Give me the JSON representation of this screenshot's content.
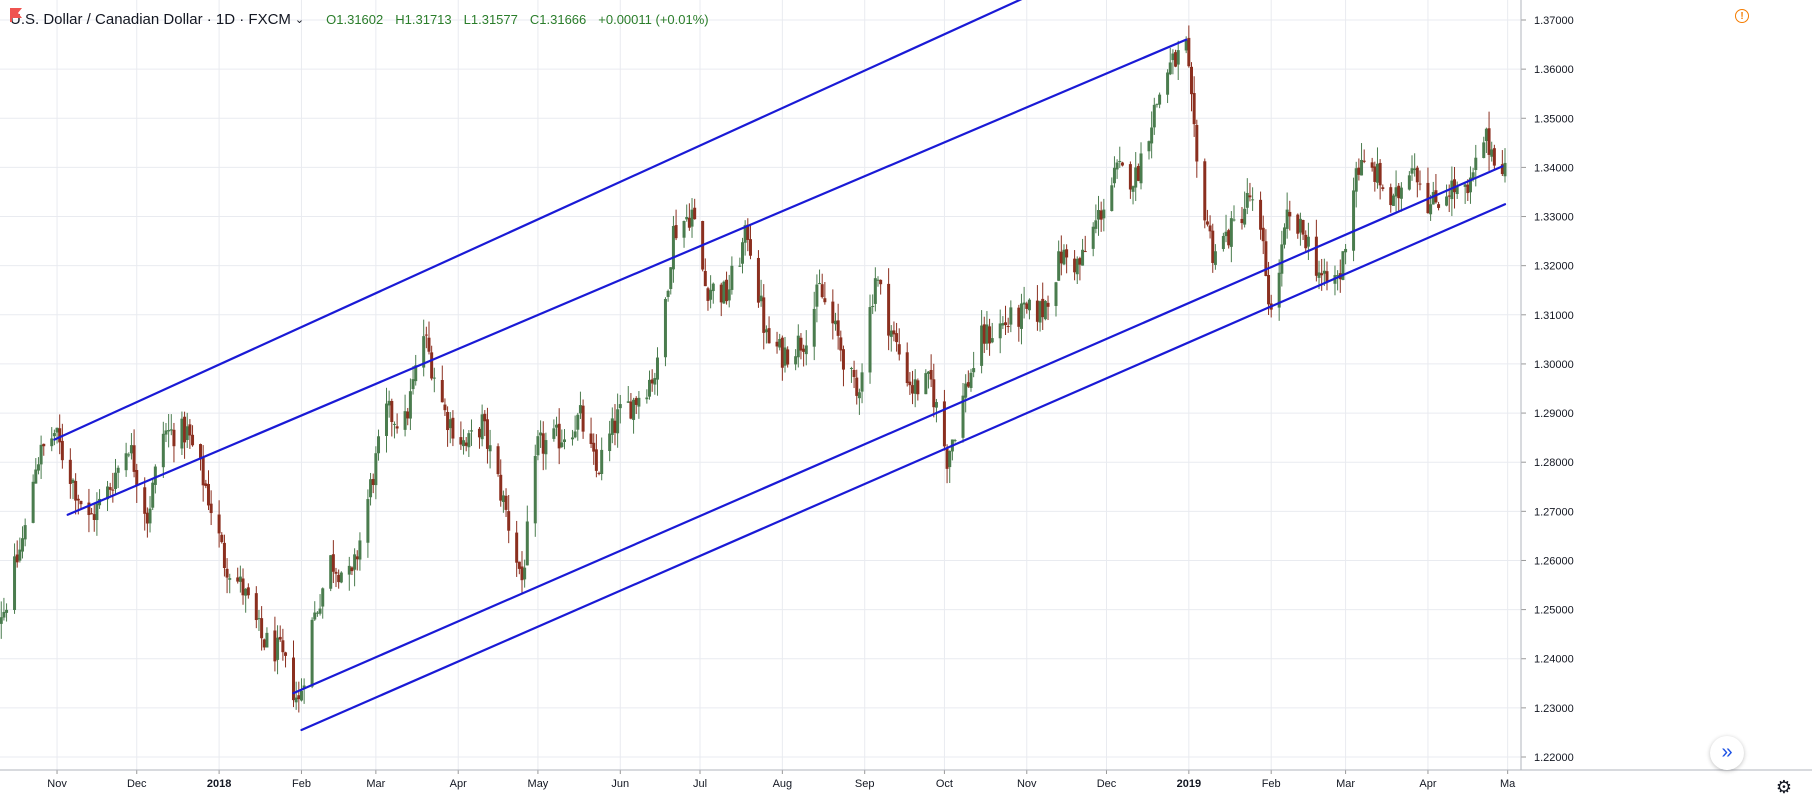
{
  "header": {
    "symbol_title": "U.S. Dollar / Canadian Dollar · 1D · FXCM",
    "chevron": "⌄",
    "open": "O1.31602",
    "high": "H1.31713",
    "low": "L1.31577",
    "close": "C1.31666",
    "change": "+0.00011 (+0.01%)",
    "flag_color": "#ef5350",
    "ohlc_color": "#2a7d2a"
  },
  "icons": {
    "alert": "!",
    "scroll_right": "»",
    "settings": "⚙"
  },
  "colors": {
    "up": "#4a7c4e",
    "down": "#8b2f1f",
    "trendline": "#1a1ad6",
    "grid": "#e9ebf0",
    "axis_text": "#131722"
  },
  "chart_data": {
    "type": "candlestick",
    "title": "U.S. Dollar / Canadian Dollar · 1D · FXCM",
    "ylim": [
      1.215,
      1.3725
    ],
    "y_ticks": [
      "1.22000",
      "1.23000",
      "1.24000",
      "1.25000",
      "1.26000",
      "1.27000",
      "1.28000",
      "1.29000",
      "1.30000",
      "1.31000",
      "1.32000",
      "1.33000",
      "1.34000",
      "1.35000",
      "1.36000",
      "1.37000"
    ],
    "x_ticks": [
      "Nov",
      "Dec",
      "2018",
      "Feb",
      "Mar",
      "Apr",
      "May",
      "Jun",
      "Jul",
      "Aug",
      "Sep",
      "Oct",
      "Nov",
      "Dec",
      "2019",
      "Feb",
      "Mar",
      "Apr",
      "Ma"
    ],
    "x_range": [
      "2017-10-03",
      "2019-04-30"
    ],
    "close_path": [
      [
        "2017-10-03",
        1.248
      ],
      [
        "2017-10-12",
        1.25
      ],
      [
        "2017-10-20",
        1.266
      ],
      [
        "2017-10-24",
        1.28
      ],
      [
        "2017-10-31",
        1.286
      ],
      [
        "2017-11-07",
        1.276
      ],
      [
        "2017-11-13",
        1.268
      ],
      [
        "2017-11-20",
        1.274
      ],
      [
        "2017-11-28",
        1.284
      ],
      [
        "2017-12-05",
        1.269
      ],
      [
        "2017-12-11",
        1.286
      ],
      [
        "2017-12-20",
        1.286
      ],
      [
        "2017-12-27",
        1.275
      ],
      [
        "2018-01-03",
        1.26
      ],
      [
        "2018-01-10",
        1.254
      ],
      [
        "2018-01-17",
        1.244
      ],
      [
        "2018-01-24",
        1.241
      ],
      [
        "2018-01-31",
        1.231
      ],
      [
        "2018-02-05",
        1.247
      ],
      [
        "2018-02-12",
        1.26
      ],
      [
        "2018-02-20",
        1.256
      ],
      [
        "2018-02-27",
        1.275
      ],
      [
        "2018-03-05",
        1.29
      ],
      [
        "2018-03-12",
        1.288
      ],
      [
        "2018-03-19",
        1.306
      ],
      [
        "2018-03-27",
        1.29
      ],
      [
        "2018-04-04",
        1.283
      ],
      [
        "2018-04-10",
        1.288
      ],
      [
        "2018-04-18",
        1.272
      ],
      [
        "2018-04-25",
        1.256
      ],
      [
        "2018-05-01",
        1.283
      ],
      [
        "2018-05-09",
        1.285
      ],
      [
        "2018-05-17",
        1.289
      ],
      [
        "2018-05-23",
        1.278
      ],
      [
        "2018-05-31",
        1.289
      ],
      [
        "2018-06-07",
        1.293
      ],
      [
        "2018-06-15",
        1.299
      ],
      [
        "2018-06-21",
        1.327
      ],
      [
        "2018-06-28",
        1.331
      ],
      [
        "2018-07-03",
        1.316
      ],
      [
        "2018-07-11",
        1.314
      ],
      [
        "2018-07-19",
        1.327
      ],
      [
        "2018-07-26",
        1.305
      ],
      [
        "2018-08-01",
        1.302
      ],
      [
        "2018-08-09",
        1.305
      ],
      [
        "2018-08-15",
        1.315
      ],
      [
        "2018-08-22",
        1.305
      ],
      [
        "2018-08-29",
        1.293
      ],
      [
        "2018-09-05",
        1.318
      ],
      [
        "2018-09-12",
        1.305
      ],
      [
        "2018-09-19",
        1.295
      ],
      [
        "2018-09-26",
        1.296
      ],
      [
        "2018-10-02",
        1.281
      ],
      [
        "2018-10-09",
        1.295
      ],
      [
        "2018-10-15",
        1.305
      ],
      [
        "2018-10-23",
        1.308
      ],
      [
        "2018-10-31",
        1.31
      ],
      [
        "2018-11-07",
        1.311
      ],
      [
        "2018-11-14",
        1.322
      ],
      [
        "2018-11-21",
        1.32
      ],
      [
        "2018-11-28",
        1.33
      ],
      [
        "2018-12-05",
        1.339
      ],
      [
        "2018-12-12",
        1.338
      ],
      [
        "2018-12-18",
        1.35
      ],
      [
        "2018-12-24",
        1.36
      ],
      [
        "2018-12-31",
        1.364
      ],
      [
        "2019-01-04",
        1.34
      ],
      [
        "2019-01-10",
        1.323
      ],
      [
        "2019-01-17",
        1.327
      ],
      [
        "2019-01-24",
        1.334
      ],
      [
        "2019-01-29",
        1.323
      ],
      [
        "2019-02-01",
        1.31
      ],
      [
        "2019-02-07",
        1.329
      ],
      [
        "2019-02-14",
        1.326
      ],
      [
        "2019-02-21",
        1.316
      ],
      [
        "2019-02-27",
        1.318
      ],
      [
        "2019-03-05",
        1.34
      ],
      [
        "2019-03-12",
        1.339
      ],
      [
        "2019-03-19",
        1.332
      ],
      [
        "2019-03-26",
        1.342
      ],
      [
        "2019-04-02",
        1.332
      ],
      [
        "2019-04-09",
        1.336
      ],
      [
        "2019-04-16",
        1.334
      ],
      [
        "2019-04-22",
        1.346
      ],
      [
        "2019-04-26",
        1.343
      ],
      [
        "2019-04-30",
        1.34
      ]
    ],
    "trendlines": [
      {
        "x1": "2017-10-31",
        "y1": 1.2846,
        "x2": "2018-12-07",
        "y2": 1.3836
      },
      {
        "x1": "2017-11-05",
        "y1": 1.2693,
        "x2": "2018-12-31",
        "y2": 1.366
      },
      {
        "x1": "2018-01-29",
        "y1": 1.233,
        "x2": "2019-04-29",
        "y2": 1.3402
      },
      {
        "x1": "2018-02-01",
        "y1": 1.2255,
        "x2": "2019-04-30",
        "y2": 1.3325
      }
    ]
  }
}
